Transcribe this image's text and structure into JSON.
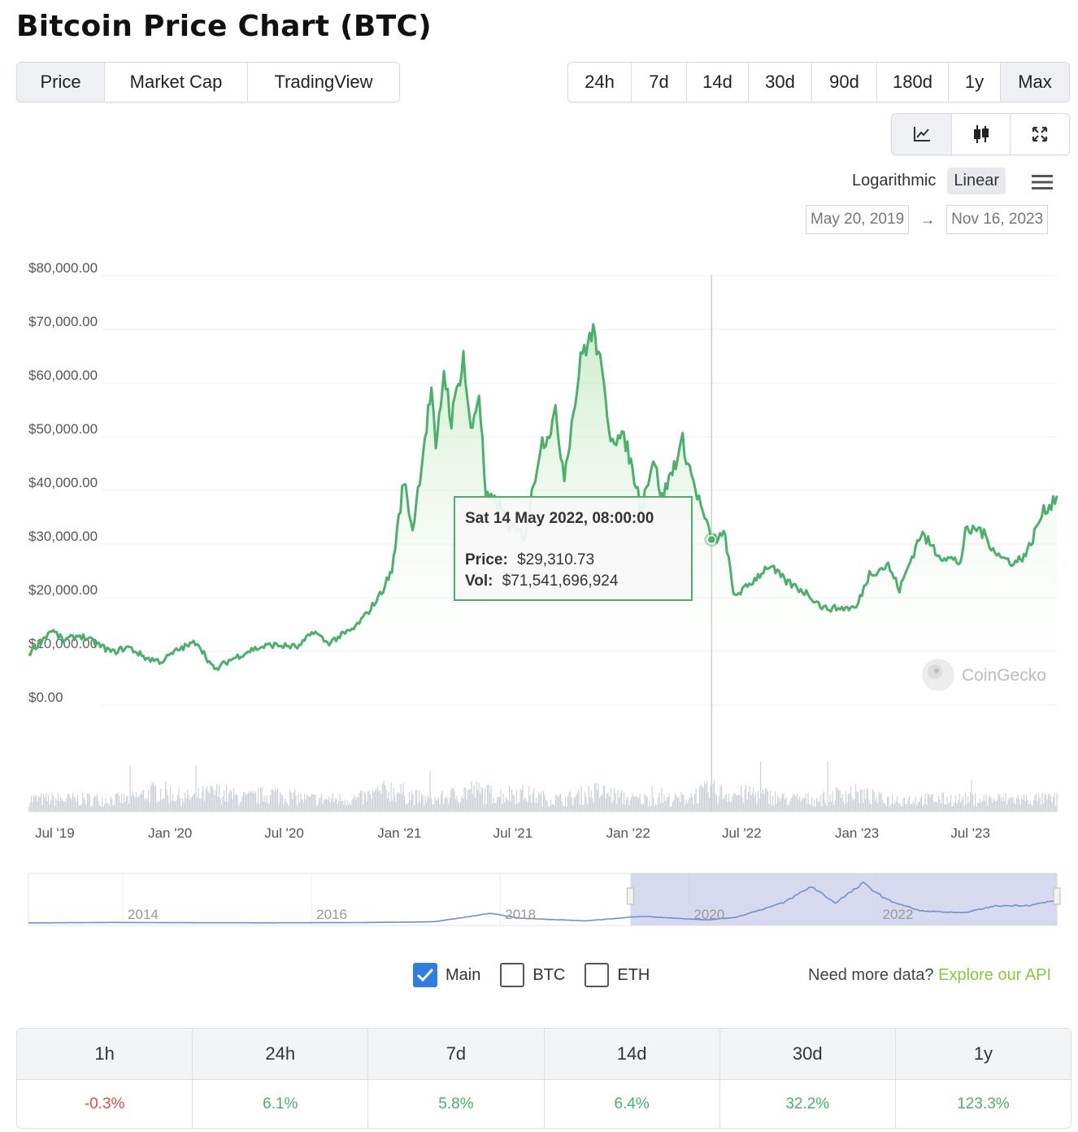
{
  "title": "Bitcoin Price Chart (BTC)",
  "type_tabs": [
    "Price",
    "Market Cap",
    "TradingView"
  ],
  "range_tabs": [
    "24h",
    "7d",
    "14d",
    "30d",
    "90d",
    "180d",
    "1y",
    "Max"
  ],
  "view_icons": [
    "line-chart-icon",
    "candlestick-icon",
    "fullscreen-icon"
  ],
  "scale": {
    "log_label": "Logarithmic",
    "linear_label": "Linear"
  },
  "date_range": {
    "from": "May 20, 2019",
    "arrow": "→",
    "to": "Nov 16, 2023"
  },
  "chart_data": {
    "type": "area",
    "title": "",
    "y_tick_labels": [
      "$80,000.00",
      "$70,000.00",
      "$60,000.00",
      "$50,000.00",
      "$40,000.00",
      "$30,000.00",
      "$20,000.00",
      "$10,000.00",
      "$0.00"
    ],
    "y_ticks": [
      80000,
      70000,
      60000,
      50000,
      40000,
      30000,
      20000,
      10000,
      0
    ],
    "ylim": [
      0,
      80000
    ],
    "x_range": [
      "2019-05-20",
      "2023-11-16"
    ],
    "x_tick_labels": [
      "Jul '19",
      "Jan '20",
      "Jul '20",
      "Jan '21",
      "Jul '21",
      "Jan '22",
      "Jul '22",
      "Jan '23",
      "Jul '23"
    ],
    "x_tick_dates": [
      "2019-07-01",
      "2020-01-01",
      "2020-07-01",
      "2021-01-01",
      "2021-07-01",
      "2022-01-01",
      "2022-07-01",
      "2023-01-01",
      "2023-07-01"
    ],
    "series": [
      {
        "name": "Price",
        "color": "#4ab06b",
        "points": [
          [
            "2019-05-20",
            8000
          ],
          [
            "2019-06-26",
            12500
          ],
          [
            "2019-07-15",
            10500
          ],
          [
            "2019-08-10",
            11500
          ],
          [
            "2019-09-01",
            10200
          ],
          [
            "2019-10-01",
            8300
          ],
          [
            "2019-10-26",
            9300
          ],
          [
            "2019-11-25",
            7200
          ],
          [
            "2019-12-18",
            6600
          ],
          [
            "2020-01-14",
            8800
          ],
          [
            "2020-02-13",
            10300
          ],
          [
            "2020-03-12",
            4900
          ],
          [
            "2020-04-01",
            6600
          ],
          [
            "2020-05-10",
            8800
          ],
          [
            "2020-06-10",
            9700
          ],
          [
            "2020-07-25",
            9300
          ],
          [
            "2020-08-17",
            12300
          ],
          [
            "2020-09-08",
            10000
          ],
          [
            "2020-10-20",
            12700
          ],
          [
            "2020-11-10",
            15500
          ],
          [
            "2020-12-01",
            19000
          ],
          [
            "2020-12-20",
            23500
          ],
          [
            "2021-01-08",
            40500
          ],
          [
            "2021-01-22",
            31000
          ],
          [
            "2021-02-08",
            46000
          ],
          [
            "2021-02-21",
            57500
          ],
          [
            "2021-02-28",
            45000
          ],
          [
            "2021-03-13",
            61000
          ],
          [
            "2021-03-25",
            51500
          ],
          [
            "2021-04-13",
            63500
          ],
          [
            "2021-04-25",
            49000
          ],
          [
            "2021-05-08",
            57000
          ],
          [
            "2021-05-19",
            37000
          ],
          [
            "2021-06-10",
            36000
          ],
          [
            "2021-06-22",
            32000
          ],
          [
            "2021-07-20",
            30000
          ],
          [
            "2021-08-14",
            47000
          ],
          [
            "2021-08-28",
            49500
          ],
          [
            "2021-09-07",
            52500
          ],
          [
            "2021-09-21",
            41500
          ],
          [
            "2021-10-20",
            64500
          ],
          [
            "2021-11-09",
            68000
          ],
          [
            "2021-12-04",
            49000
          ],
          [
            "2021-12-28",
            47500
          ],
          [
            "2022-01-22",
            35500
          ],
          [
            "2022-02-10",
            44500
          ],
          [
            "2022-02-24",
            37000
          ],
          [
            "2022-03-29",
            47500
          ],
          [
            "2022-04-15",
            40000
          ],
          [
            "2022-05-09",
            31000
          ],
          [
            "2022-05-14",
            29310
          ],
          [
            "2022-06-05",
            30000
          ],
          [
            "2022-06-18",
            19000
          ],
          [
            "2022-07-05",
            20000
          ],
          [
            "2022-08-13",
            24500
          ],
          [
            "2022-09-10",
            21500
          ],
          [
            "2022-10-15",
            19200
          ],
          [
            "2022-11-09",
            16500
          ],
          [
            "2022-12-31",
            16600
          ],
          [
            "2023-01-21",
            23000
          ],
          [
            "2023-02-20",
            24500
          ],
          [
            "2023-03-10",
            20000
          ],
          [
            "2023-04-13",
            30500
          ],
          [
            "2023-05-12",
            26500
          ],
          [
            "2023-06-15",
            25000
          ],
          [
            "2023-06-23",
            30500
          ],
          [
            "2023-07-14",
            31500
          ],
          [
            "2023-08-18",
            26000
          ],
          [
            "2023-09-11",
            25000
          ],
          [
            "2023-09-30",
            27000
          ],
          [
            "2023-10-23",
            34000
          ],
          [
            "2023-11-16",
            37500
          ]
        ]
      }
    ],
    "volume_label": "Vol",
    "grid": true,
    "watermark": "CoinGecko",
    "tooltip": {
      "date": "Sat 14 May 2022, 08:00:00",
      "price_label": "Price:",
      "price": "$29,310.73",
      "vol_label": "Vol:",
      "vol": "$71,541,696,924",
      "x_date": "2022-05-14",
      "y_value": 29310.73
    },
    "navigator": {
      "year_labels": [
        "2014",
        "2016",
        "2018",
        "2020",
        "2022"
      ],
      "year_values": [
        2014,
        2016,
        2018,
        2020,
        2022
      ],
      "range": [
        2013,
        2023.9
      ],
      "selected": [
        2019.38,
        2023.9
      ],
      "points": [
        [
          2013.0,
          100
        ],
        [
          2013.9,
          900
        ],
        [
          2014.5,
          500
        ],
        [
          2015.5,
          300
        ],
        [
          2016.5,
          650
        ],
        [
          2017.3,
          2000
        ],
        [
          2017.9,
          16000
        ],
        [
          2018.2,
          8000
        ],
        [
          2018.9,
          3500
        ],
        [
          2019.5,
          11000
        ],
        [
          2020.2,
          5000
        ],
        [
          2020.5,
          9500
        ],
        [
          2021.0,
          33000
        ],
        [
          2021.3,
          60000
        ],
        [
          2021.55,
          33000
        ],
        [
          2021.85,
          65000
        ],
        [
          2022.1,
          38000
        ],
        [
          2022.45,
          20000
        ],
        [
          2022.9,
          16500
        ],
        [
          2023.25,
          28000
        ],
        [
          2023.6,
          29000
        ],
        [
          2023.9,
          37000
        ]
      ]
    }
  },
  "legend": {
    "main": "Main",
    "btc": "BTC",
    "eth": "ETH"
  },
  "api": {
    "text": "Need more data?",
    "link": "Explore our API"
  },
  "stats": {
    "headers": [
      "1h",
      "24h",
      "7d",
      "14d",
      "30d",
      "1y"
    ],
    "values": [
      "-0.3%",
      "6.1%",
      "5.8%",
      "6.4%",
      "32.2%",
      "123.3%"
    ]
  },
  "colors": {
    "up": "#4ab06b",
    "down": "#e04b4b",
    "accent": "#2f7de1",
    "api_link": "#8dc63f"
  }
}
